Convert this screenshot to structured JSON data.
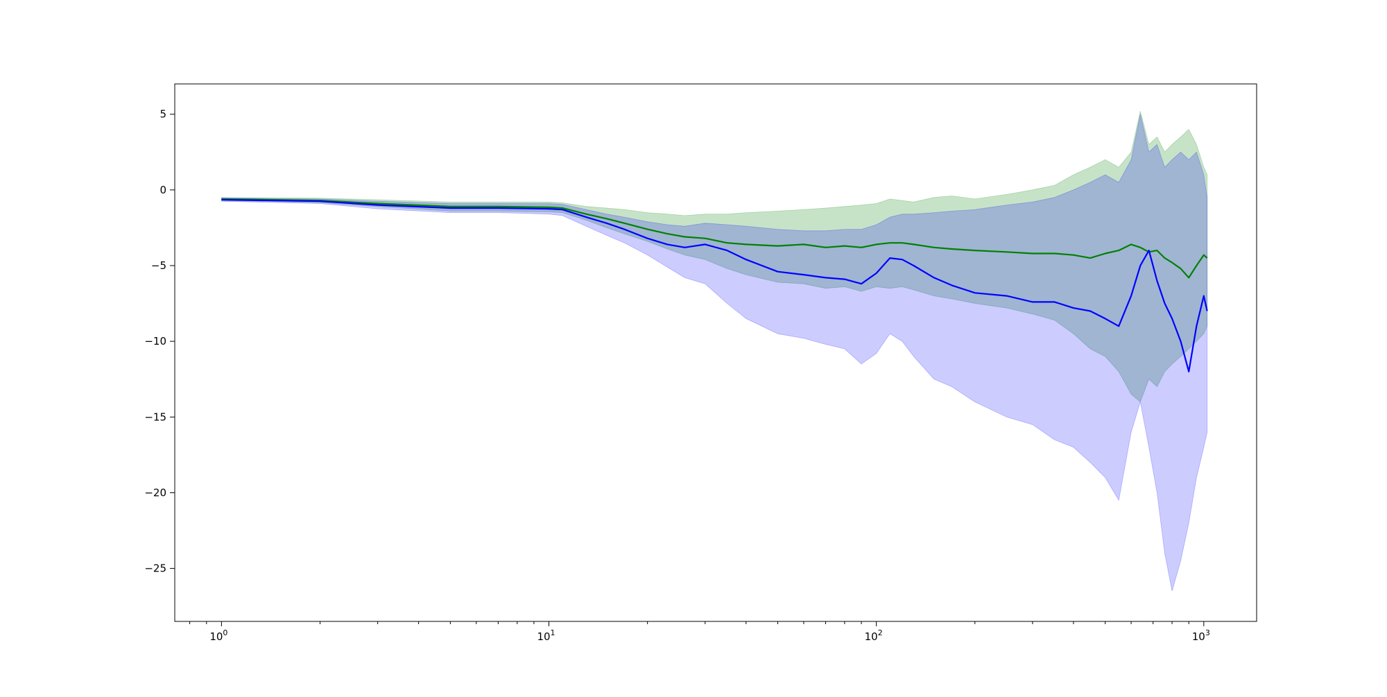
{
  "chart_data": {
    "type": "line",
    "title": "",
    "xlabel": "",
    "ylabel": "",
    "xscale": "log",
    "xlim": [
      0.72,
      1450
    ],
    "ylim": [
      -28.5,
      7
    ],
    "grid": false,
    "legend": "none",
    "x_ticks": [
      {
        "value": 1,
        "base": "10",
        "exp": "0"
      },
      {
        "value": 10,
        "base": "10",
        "exp": "1"
      },
      {
        "value": 100,
        "base": "10",
        "exp": "2"
      },
      {
        "value": 1000,
        "base": "10",
        "exp": "3"
      }
    ],
    "y_ticks": [
      {
        "value": 5,
        "label": "5"
      },
      {
        "value": 0,
        "label": "0"
      },
      {
        "value": -5,
        "label": "−5"
      },
      {
        "value": -10,
        "label": "−10"
      },
      {
        "value": -15,
        "label": "−15"
      },
      {
        "value": -20,
        "label": "−20"
      },
      {
        "value": -25,
        "label": "−25"
      }
    ],
    "series": [
      {
        "key": "green",
        "color": "#008000",
        "band_color": "#008000",
        "band_opacity": 0.22,
        "x": [
          1,
          2,
          3,
          5,
          7,
          10,
          11,
          13,
          15,
          17,
          20,
          23,
          26,
          30,
          35,
          40,
          50,
          60,
          70,
          80,
          90,
          100,
          110,
          120,
          130,
          150,
          170,
          200,
          250,
          300,
          350,
          400,
          450,
          500,
          550,
          600,
          640,
          680,
          720,
          760,
          800,
          850,
          900,
          950,
          1000,
          1024
        ],
        "values": [
          -0.6,
          -0.7,
          -0.9,
          -1.1,
          -1.1,
          -1.15,
          -1.2,
          -1.6,
          -1.9,
          -2.2,
          -2.6,
          -2.9,
          -3.1,
          -3.2,
          -3.5,
          -3.6,
          -3.7,
          -3.6,
          -3.8,
          -3.7,
          -3.8,
          -3.6,
          -3.5,
          -3.5,
          -3.6,
          -3.8,
          -3.9,
          -4.0,
          -4.1,
          -4.2,
          -4.2,
          -4.3,
          -4.5,
          -4.2,
          -4.0,
          -3.6,
          -3.8,
          -4.1,
          -4.0,
          -4.5,
          -4.8,
          -5.2,
          -5.8,
          -5.0,
          -4.3,
          -4.5
        ],
        "upper": [
          -0.5,
          -0.55,
          -0.65,
          -0.8,
          -0.8,
          -0.8,
          -0.85,
          -1.1,
          -1.2,
          -1.3,
          -1.5,
          -1.6,
          -1.7,
          -1.6,
          -1.6,
          -1.5,
          -1.4,
          -1.3,
          -1.2,
          -1.1,
          -1.0,
          -0.9,
          -0.6,
          -0.7,
          -0.8,
          -0.5,
          -0.4,
          -0.6,
          -0.3,
          0.0,
          0.3,
          1.0,
          1.5,
          2.0,
          1.5,
          2.5,
          5.2,
          3.0,
          3.5,
          2.5,
          3.0,
          3.5,
          4.0,
          3.0,
          1.5,
          1.0
        ],
        "lower": [
          -0.7,
          -0.85,
          -1.1,
          -1.4,
          -1.4,
          -1.45,
          -1.5,
          -2.0,
          -2.5,
          -2.9,
          -3.4,
          -3.9,
          -4.3,
          -4.6,
          -5.2,
          -5.6,
          -6.1,
          -6.2,
          -6.5,
          -6.4,
          -6.7,
          -6.4,
          -6.5,
          -6.4,
          -6.6,
          -7.0,
          -7.2,
          -7.5,
          -7.8,
          -8.2,
          -8.6,
          -9.5,
          -10.5,
          -11.0,
          -12.0,
          -13.5,
          -14.0,
          -12.5,
          -13.0,
          -12.0,
          -11.5,
          -11.0,
          -10.5,
          -10.0,
          -9.5,
          -9.0
        ]
      },
      {
        "key": "blue",
        "color": "#0000ff",
        "band_color": "#0000ff",
        "band_opacity": 0.2,
        "x": [
          1,
          2,
          3,
          5,
          7,
          10,
          11,
          13,
          15,
          17,
          20,
          23,
          26,
          30,
          35,
          40,
          50,
          60,
          70,
          80,
          90,
          100,
          110,
          120,
          130,
          150,
          170,
          200,
          250,
          300,
          350,
          400,
          450,
          500,
          550,
          600,
          640,
          680,
          720,
          760,
          800,
          850,
          900,
          950,
          1000,
          1024
        ],
        "values": [
          -0.65,
          -0.75,
          -1.0,
          -1.2,
          -1.2,
          -1.25,
          -1.3,
          -1.8,
          -2.2,
          -2.6,
          -3.2,
          -3.6,
          -3.8,
          -3.6,
          -4.0,
          -4.6,
          -5.4,
          -5.6,
          -5.8,
          -5.9,
          -6.2,
          -5.5,
          -4.5,
          -4.6,
          -5.0,
          -5.8,
          -6.3,
          -6.8,
          -7.0,
          -7.4,
          -7.4,
          -7.8,
          -8.0,
          -8.5,
          -9.0,
          -7.0,
          -5.0,
          -4.0,
          -6.0,
          -7.5,
          -8.5,
          -10.0,
          -12.0,
          -9.0,
          -7.0,
          -8.0
        ],
        "upper": [
          -0.55,
          -0.6,
          -0.75,
          -0.9,
          -0.9,
          -0.9,
          -0.95,
          -1.3,
          -1.6,
          -1.8,
          -2.1,
          -2.3,
          -2.4,
          -2.2,
          -2.3,
          -2.4,
          -2.6,
          -2.7,
          -2.7,
          -2.6,
          -2.6,
          -2.3,
          -1.8,
          -1.6,
          -1.6,
          -1.5,
          -1.4,
          -1.3,
          -1.0,
          -0.8,
          -0.5,
          0.0,
          0.5,
          1.0,
          0.5,
          2.0,
          5.0,
          2.5,
          3.0,
          1.5,
          2.0,
          2.5,
          2.0,
          2.5,
          1.0,
          -0.5
        ],
        "lower": [
          -0.75,
          -0.9,
          -1.25,
          -1.5,
          -1.5,
          -1.6,
          -1.7,
          -2.4,
          -3.0,
          -3.5,
          -4.3,
          -5.1,
          -5.8,
          -6.2,
          -7.5,
          -8.5,
          -9.5,
          -9.8,
          -10.2,
          -10.5,
          -11.5,
          -10.8,
          -9.5,
          -10.0,
          -11.0,
          -12.5,
          -13.0,
          -14.0,
          -15.0,
          -15.5,
          -16.5,
          -17.0,
          -18.0,
          -19.0,
          -20.5,
          -16.0,
          -14.0,
          -17.0,
          -20.0,
          -24.0,
          -26.5,
          -24.5,
          -22.0,
          -19.0,
          -17.0,
          -16.0
        ]
      }
    ]
  }
}
